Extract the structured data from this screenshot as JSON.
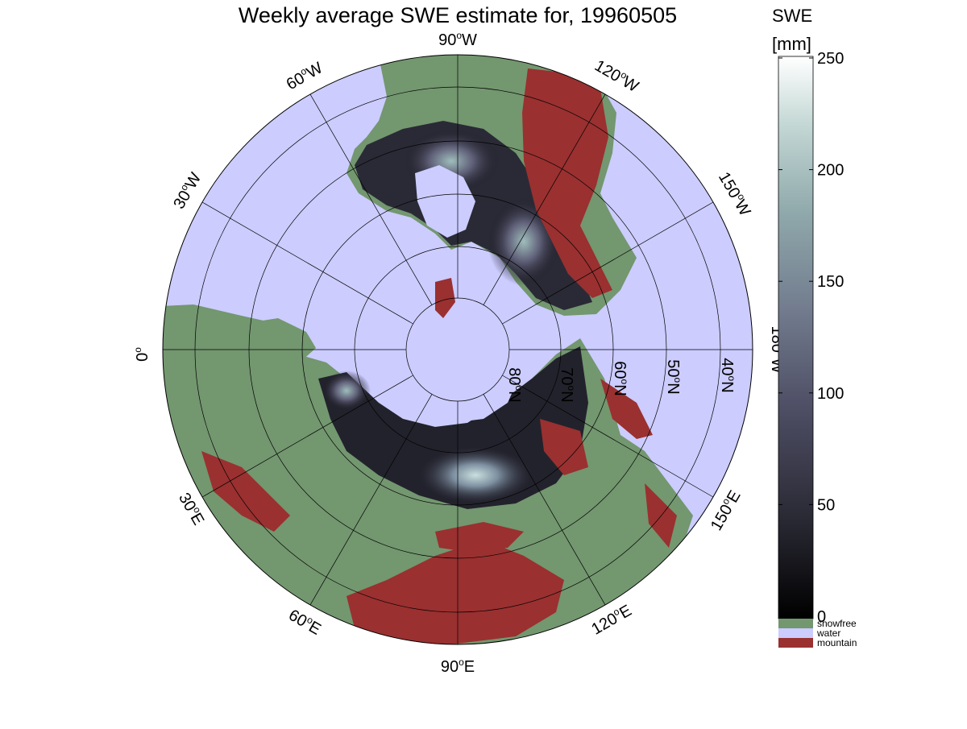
{
  "title": "Weekly average SWE estimate for, 19960505",
  "map": {
    "projection": "north polar stereographic",
    "longitude_labels": [
      {
        "deg": "90",
        "hemi": "W"
      },
      {
        "deg": "60",
        "hemi": "W"
      },
      {
        "deg": "120",
        "hemi": "W"
      },
      {
        "deg": "30",
        "hemi": "W"
      },
      {
        "deg": "150",
        "hemi": "W"
      },
      {
        "deg": "0",
        "hemi": ""
      },
      {
        "deg": "180",
        "hemi": "W"
      },
      {
        "deg": "30",
        "hemi": "E"
      },
      {
        "deg": "150",
        "hemi": "E"
      },
      {
        "deg": "60",
        "hemi": "E"
      },
      {
        "deg": "120",
        "hemi": "E"
      },
      {
        "deg": "90",
        "hemi": "E"
      }
    ],
    "latitude_labels": [
      {
        "deg": "80",
        "hemi": "N"
      },
      {
        "deg": "70",
        "hemi": "N"
      },
      {
        "deg": "60",
        "hemi": "N"
      },
      {
        "deg": "50",
        "hemi": "N"
      },
      {
        "deg": "40",
        "hemi": "N"
      }
    ],
    "colors": {
      "water": "#ccccff",
      "snowfree": "#73976f",
      "mountain": "#9a3030",
      "swe_low": "#0a0a10",
      "swe_mid": "#4d4d63",
      "swe_high": "#9fbdbc"
    }
  },
  "colorbar": {
    "label_line1": "SWE",
    "label_line2": "[mm]",
    "ticks": [
      "0",
      "50",
      "100",
      "150",
      "200",
      "250"
    ],
    "range": [
      0,
      250
    ],
    "colors": [
      "#000000",
      "#2a2a35",
      "#4f4f66",
      "#727c8e",
      "#8fa8ab",
      "#b6cfcc",
      "#ffffff"
    ],
    "categories": [
      {
        "label": "snowfree",
        "color": "#73976f"
      },
      {
        "label": "water",
        "color": "#ccccff"
      },
      {
        "label": "mountain",
        "color": "#9a3030"
      }
    ]
  }
}
